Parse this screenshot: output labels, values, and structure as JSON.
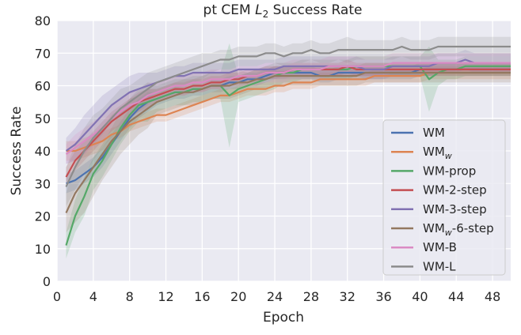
{
  "chart_data": {
    "type": "line",
    "title": "pt CEM L2 Success Rate",
    "title_parts": {
      "prefix": "pt CEM ",
      "italic": "L",
      "subscript": "2",
      "suffix": " Success Rate"
    },
    "xlabel": "Epoch",
    "ylabel": "Success Rate",
    "xlim": [
      0,
      50
    ],
    "ylim": [
      0,
      80
    ],
    "xticks": [
      0,
      4,
      8,
      12,
      16,
      20,
      24,
      28,
      32,
      36,
      40,
      44,
      48
    ],
    "yticks": [
      0,
      10,
      20,
      30,
      40,
      50,
      60,
      70,
      80
    ],
    "grid": true,
    "background": "#eaeaf2",
    "legend_position": "lower-right",
    "x": [
      1,
      2,
      3,
      4,
      5,
      6,
      7,
      8,
      9,
      10,
      11,
      12,
      13,
      14,
      15,
      16,
      17,
      18,
      19,
      20,
      21,
      22,
      23,
      24,
      25,
      26,
      27,
      28,
      29,
      30,
      31,
      32,
      33,
      34,
      35,
      36,
      37,
      38,
      39,
      40,
      41,
      42,
      43,
      44,
      45,
      46,
      47,
      48,
      49,
      50
    ],
    "series": [
      {
        "name": "WM",
        "legend_base": "WM",
        "legend_sub": "",
        "legend_suffix": "",
        "color": "#4c72b0",
        "values": [
          30,
          31,
          33,
          35,
          38,
          42,
          46,
          50,
          53,
          55,
          56,
          57,
          58,
          58,
          59,
          59,
          60,
          60,
          61,
          61,
          62,
          62,
          63,
          64,
          64,
          64,
          64,
          64,
          63,
          63,
          64,
          64,
          64,
          64,
          64,
          64,
          64,
          64,
          64,
          65,
          65,
          65,
          65,
          65,
          65,
          65,
          65,
          65,
          65,
          65
        ],
        "band": [
          3,
          3,
          3,
          3,
          3,
          3,
          3,
          3,
          3,
          3,
          2,
          2,
          2,
          2,
          2,
          2,
          2,
          2,
          2,
          2,
          2,
          2,
          2,
          2,
          2,
          2,
          2,
          2,
          2,
          2,
          2,
          2,
          2,
          2,
          2,
          2,
          2,
          2,
          2,
          2,
          2,
          2,
          2,
          2,
          2,
          2,
          2,
          2,
          2,
          2
        ]
      },
      {
        "name": "WMw",
        "legend_base": "WM",
        "legend_sub": "w",
        "legend_suffix": "",
        "color": "#dd8452",
        "values": [
          40,
          40,
          41,
          42,
          43,
          45,
          46,
          48,
          49,
          50,
          51,
          51,
          52,
          53,
          54,
          55,
          56,
          57,
          57,
          58,
          59,
          59,
          59,
          60,
          60,
          61,
          61,
          61,
          62,
          62,
          62,
          62,
          62,
          62,
          63,
          63,
          63,
          63,
          63,
          63,
          64,
          64,
          64,
          64,
          64,
          64,
          64,
          64,
          64,
          64
        ],
        "band": [
          3,
          3,
          3,
          3,
          3,
          2,
          2,
          2,
          2,
          2,
          2,
          2,
          2,
          2,
          2,
          2,
          2,
          2,
          2,
          2,
          2,
          2,
          2,
          2,
          2,
          2,
          2,
          2,
          2,
          2,
          2,
          2,
          2,
          2,
          2,
          2,
          2,
          2,
          2,
          2,
          2,
          2,
          2,
          2,
          2,
          2,
          2,
          2,
          2,
          2
        ]
      },
      {
        "name": "WM-prop",
        "legend_base": "WM-prop",
        "legend_sub": "",
        "legend_suffix": "",
        "color": "#55a868",
        "values": [
          11,
          20,
          26,
          33,
          37,
          42,
          47,
          51,
          54,
          55,
          56,
          57,
          58,
          58,
          59,
          59,
          60,
          60,
          57,
          59,
          60,
          61,
          62,
          63,
          64,
          64,
          65,
          65,
          65,
          65,
          65,
          65,
          66,
          66,
          66,
          66,
          66,
          66,
          66,
          66,
          62,
          64,
          65,
          65,
          66,
          66,
          66,
          66,
          66,
          66
        ],
        "band": [
          4,
          5,
          6,
          5,
          5,
          5,
          5,
          5,
          5,
          6,
          4,
          4,
          4,
          4,
          4,
          4,
          4,
          4,
          16,
          4,
          4,
          4,
          4,
          4,
          3,
          3,
          3,
          3,
          3,
          3,
          3,
          3,
          3,
          3,
          3,
          3,
          3,
          3,
          3,
          3,
          10,
          4,
          3,
          3,
          3,
          3,
          3,
          3,
          3,
          3
        ]
      },
      {
        "name": "WM-2-step",
        "legend_base": "WM-2-step",
        "legend_sub": "",
        "legend_suffix": "",
        "color": "#c44e52",
        "values": [
          32,
          37,
          40,
          43,
          46,
          49,
          51,
          53,
          55,
          56,
          57,
          58,
          59,
          59,
          60,
          60,
          61,
          61,
          62,
          62,
          63,
          63,
          64,
          64,
          64,
          65,
          65,
          65,
          65,
          65,
          65,
          66,
          65,
          65,
          65,
          65,
          65,
          65,
          65,
          65,
          65,
          65,
          65,
          65,
          65,
          65,
          65,
          65,
          65,
          65
        ],
        "band": [
          3,
          3,
          3,
          3,
          3,
          3,
          3,
          3,
          3,
          3,
          2,
          2,
          2,
          2,
          2,
          2,
          2,
          2,
          2,
          2,
          2,
          2,
          2,
          2,
          2,
          2,
          2,
          2,
          2,
          2,
          2,
          2,
          2,
          2,
          2,
          2,
          2,
          2,
          2,
          2,
          2,
          2,
          2,
          2,
          2,
          2,
          2,
          2,
          2,
          2
        ]
      },
      {
        "name": "WM-3-step",
        "legend_base": "WM-3-step",
        "legend_sub": "",
        "legend_suffix": "",
        "color": "#8172b3",
        "values": [
          40,
          42,
          45,
          48,
          51,
          54,
          56,
          58,
          59,
          60,
          61,
          62,
          63,
          63,
          64,
          64,
          64,
          64,
          64,
          65,
          65,
          65,
          65,
          65,
          66,
          66,
          66,
          66,
          66,
          66,
          66,
          66,
          66,
          65,
          65,
          65,
          66,
          66,
          66,
          66,
          66,
          67,
          67,
          67,
          68,
          67,
          67,
          67,
          67,
          67
        ],
        "band": [
          4,
          5,
          6,
          6,
          6,
          5,
          5,
          5,
          5,
          4,
          3,
          3,
          3,
          3,
          3,
          3,
          3,
          3,
          3,
          3,
          3,
          3,
          3,
          3,
          3,
          3,
          3,
          3,
          3,
          3,
          3,
          3,
          3,
          3,
          3,
          3,
          3,
          3,
          3,
          3,
          3,
          3,
          3,
          3,
          3,
          3,
          3,
          3,
          3,
          3
        ]
      },
      {
        "name": "WMw-6-step",
        "legend_base": "WM",
        "legend_sub": "w",
        "legend_suffix": "-6-step",
        "color": "#937860",
        "values": [
          21,
          27,
          31,
          35,
          39,
          43,
          46,
          49,
          51,
          53,
          55,
          56,
          57,
          58,
          58,
          59,
          60,
          60,
          60,
          61,
          61,
          62,
          62,
          63,
          63,
          63,
          63,
          63,
          63,
          63,
          63,
          63,
          63,
          64,
          64,
          64,
          64,
          64,
          64,
          64,
          64,
          64,
          64,
          64,
          64,
          64,
          64,
          64,
          64,
          64
        ],
        "band": [
          6,
          9,
          10,
          9,
          8,
          8,
          7,
          7,
          6,
          6,
          4,
          4,
          4,
          4,
          4,
          4,
          4,
          4,
          4,
          4,
          3,
          3,
          3,
          3,
          3,
          3,
          3,
          3,
          3,
          3,
          3,
          3,
          3,
          3,
          3,
          3,
          3,
          3,
          3,
          3,
          3,
          3,
          3,
          3,
          3,
          3,
          3,
          3,
          3,
          3
        ]
      },
      {
        "name": "WM-B",
        "legend_base": "WM-B",
        "legend_sub": "",
        "legend_suffix": "",
        "color": "#da8bc3",
        "values": [
          39,
          41,
          43,
          45,
          47,
          50,
          52,
          54,
          55,
          57,
          58,
          59,
          60,
          60,
          61,
          61,
          62,
          62,
          62,
          63,
          63,
          63,
          64,
          64,
          64,
          65,
          65,
          65,
          65,
          66,
          66,
          66,
          66,
          66,
          66,
          66,
          67,
          67,
          67,
          67,
          67,
          67,
          67,
          67,
          67,
          67,
          67,
          67,
          67,
          67
        ],
        "band": [
          3,
          4,
          4,
          4,
          4,
          4,
          4,
          4,
          4,
          4,
          3,
          3,
          3,
          3,
          3,
          3,
          3,
          3,
          3,
          3,
          3,
          3,
          3,
          3,
          3,
          3,
          3,
          3,
          3,
          3,
          3,
          3,
          3,
          3,
          3,
          3,
          3,
          3,
          3,
          3,
          3,
          3,
          3,
          3,
          3,
          3,
          3,
          3,
          3,
          3
        ]
      },
      {
        "name": "WM-L",
        "legend_base": "WM-L",
        "legend_sub": "",
        "legend_suffix": "",
        "color": "#8c8c8c",
        "values": [
          29,
          35,
          40,
          44,
          47,
          50,
          53,
          55,
          57,
          59,
          61,
          62,
          63,
          64,
          65,
          66,
          67,
          68,
          68,
          69,
          69,
          69,
          70,
          70,
          69,
          70,
          70,
          71,
          70,
          70,
          71,
          71,
          71,
          71,
          71,
          71,
          71,
          72,
          71,
          71,
          71,
          72,
          72,
          72,
          72,
          72,
          72,
          72,
          72,
          72
        ],
        "band": [
          6,
          7,
          7,
          7,
          6,
          6,
          6,
          5,
          5,
          5,
          4,
          4,
          4,
          4,
          4,
          4,
          3,
          3,
          3,
          3,
          3,
          3,
          3,
          3,
          3,
          3,
          3,
          3,
          3,
          3,
          3,
          4,
          3,
          3,
          3,
          3,
          3,
          3,
          3,
          3,
          3,
          3,
          3,
          3,
          3,
          3,
          3,
          3,
          3,
          3
        ]
      }
    ]
  }
}
